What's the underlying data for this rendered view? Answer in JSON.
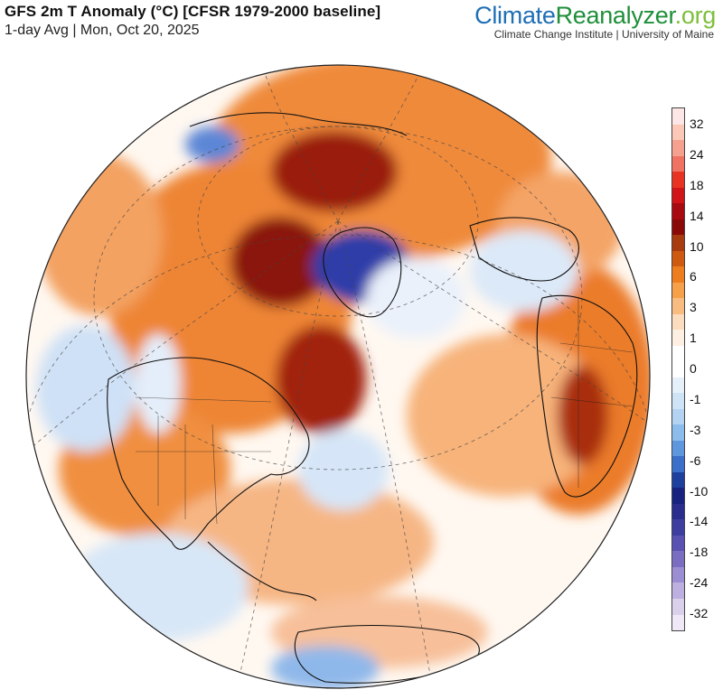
{
  "header": {
    "title": "GFS 2m T Anomaly (°C) [CFSR 1979-2000 baseline]",
    "subtitle": "1-day Avg | Mon, Oct 20, 2025"
  },
  "brand": {
    "name_part1": "Climate",
    "name_part2": "Reanalyzer",
    "name_part3": ".org",
    "subtitle": "Climate Change Institute | University of Maine"
  },
  "legend": {
    "labels": [
      "32",
      "24",
      "18",
      "14",
      "10",
      "6",
      "3",
      "1",
      "0",
      "-1",
      "-3",
      "-6",
      "-10",
      "-14",
      "-18",
      "-24",
      "-32"
    ],
    "colors": [
      "#fde6e6",
      "#fbc8b8",
      "#f6a190",
      "#f07262",
      "#e83222",
      "#d01418",
      "#a80a10",
      "#8a0a08",
      "#a83c0e",
      "#cd5a10",
      "#ec7e20",
      "#f6a04a",
      "#f9bc80",
      "#fcdcbe",
      "#fdf0e2",
      "#ffffff",
      "#ffffff",
      "#e6f0fb",
      "#cfe3f7",
      "#b4d3f2",
      "#8cbcec",
      "#5f97de",
      "#3b6fca",
      "#1d3f9e",
      "#17237e",
      "#2a2d8e",
      "#3e3ea0",
      "#5a52b2",
      "#7a6ec2",
      "#9c8ed2",
      "#bdb0e0",
      "#dbd0ec",
      "#f0e8f6"
    ]
  },
  "map": {
    "ocean_color": "#ffffff",
    "warm_color": "#ef8a3a",
    "hot_color": "#9a1a0c",
    "cold_color": "#8fb8ea",
    "very_cold_color": "#2f3ea8"
  }
}
